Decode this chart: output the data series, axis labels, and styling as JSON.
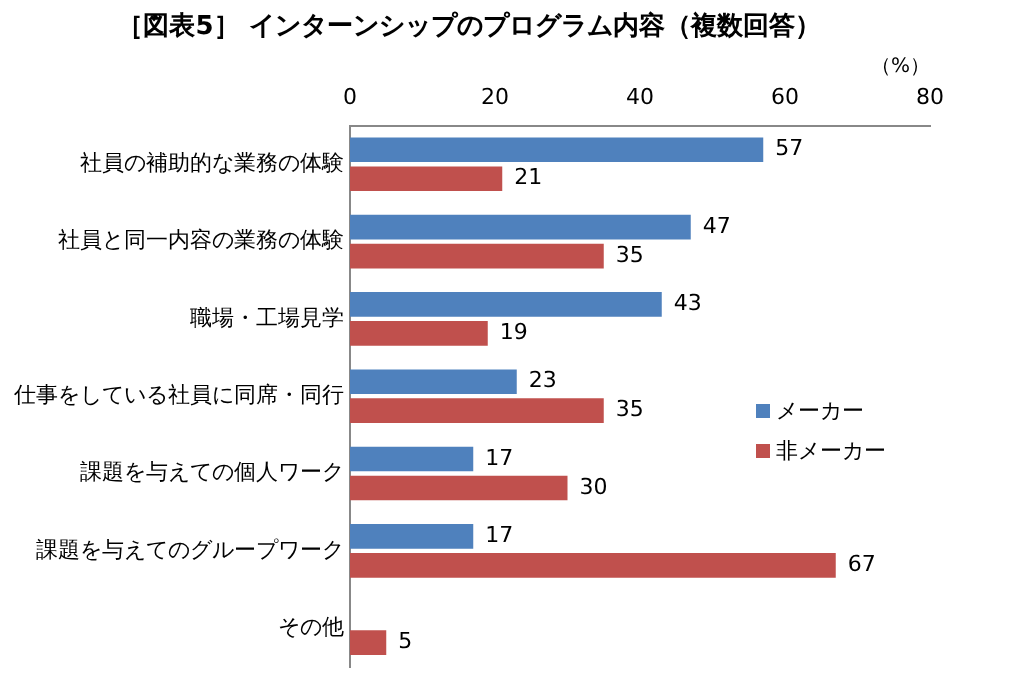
{
  "chart_data": {
    "type": "bar",
    "orientation": "horizontal",
    "title": "［図表5］ インターンシップのプログラム内容（複数回答）",
    "xlabel": "（%）",
    "categories": [
      "社員の補助的な業務の体験",
      "社員と同一内容の業務の体験",
      "職場・工場見学",
      "仕事をしている社員に同席・同行",
      "課題を与えての個人ワーク",
      "課題を与えてのグループワーク",
      "その他"
    ],
    "series": [
      {
        "name": "メーカー",
        "color": "#4f81bd",
        "values": [
          57,
          47,
          43,
          23,
          17,
          17,
          null
        ]
      },
      {
        "name": "非メーカー",
        "color": "#c0504d",
        "values": [
          21,
          35,
          19,
          35,
          30,
          67,
          5
        ]
      }
    ],
    "xlim": [
      0,
      80
    ],
    "xticks": [
      0,
      20,
      40,
      60,
      80
    ],
    "grid": false,
    "legend": "right",
    "data_labels": true
  }
}
